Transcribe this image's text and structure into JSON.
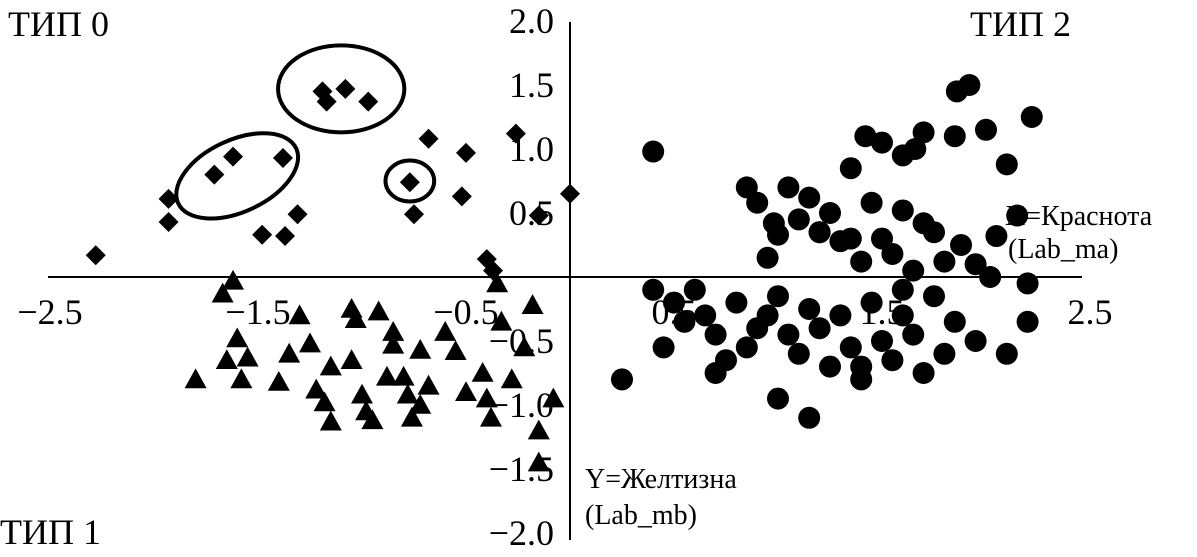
{
  "chart_data": {
    "type": "scatter",
    "title": "",
    "xlim": [
      -2.5,
      2.5
    ],
    "ylim": [
      -2.0,
      2.0
    ],
    "grid": false,
    "x_ticks": [
      {
        "value": -2.5,
        "label": "−2.5"
      },
      {
        "value": -1.5,
        "label": "−1.5"
      },
      {
        "value": -0.5,
        "label": "−0.5"
      },
      {
        "value": 0.5,
        "label": "0.5"
      },
      {
        "value": 1.5,
        "label": "1.5"
      },
      {
        "value": 2.5,
        "label": "2.5"
      }
    ],
    "y_ticks": [
      {
        "value": 2.0,
        "label": "2.0"
      },
      {
        "value": 1.5,
        "label": "1.5"
      },
      {
        "value": 1.0,
        "label": "1.0"
      },
      {
        "value": 0.5,
        "label": "0.5"
      },
      {
        "value": -0.5,
        "label": "−0.5"
      },
      {
        "value": -1.0,
        "label": "−1.0"
      },
      {
        "value": -1.5,
        "label": "−1.5"
      },
      {
        "value": -2.0,
        "label": "−2.0"
      }
    ],
    "xlabel": [
      "X=Краснота",
      "(Lab_ma)"
    ],
    "ylabel": [
      "Y=Желтизна",
      "(Lab_mb)"
    ],
    "corner_labels": {
      "top_left": "ТИП 0",
      "top_right": "ТИП 2",
      "bottom_left": "ТИП 1"
    },
    "series": [
      {
        "marker": "diamond",
        "points": [
          [
            -2.28,
            0.17
          ],
          [
            -1.93,
            0.61
          ],
          [
            -1.93,
            0.43
          ],
          [
            -1.71,
            0.8
          ],
          [
            -1.62,
            0.94
          ],
          [
            -1.48,
            0.33
          ],
          [
            -1.38,
            0.93
          ],
          [
            -1.37,
            0.32
          ],
          [
            -1.31,
            0.49
          ],
          [
            -1.19,
            1.45
          ],
          [
            -1.17,
            1.37
          ],
          [
            -1.08,
            1.47
          ],
          [
            -0.97,
            1.37
          ],
          [
            -0.77,
            0.74
          ],
          [
            -0.75,
            0.49
          ],
          [
            -0.68,
            1.08
          ],
          [
            -0.5,
            0.97
          ],
          [
            -0.52,
            0.63
          ],
          [
            -0.4,
            0.14
          ],
          [
            -0.37,
            0.05
          ],
          [
            -0.26,
            1.12
          ],
          [
            -0.15,
            0.48
          ],
          [
            0.0,
            0.65
          ]
        ]
      },
      {
        "marker": "triangle",
        "points": [
          [
            -1.62,
            -0.03
          ],
          [
            -1.67,
            -0.13
          ],
          [
            -1.6,
            -0.48
          ],
          [
            -1.65,
            -0.65
          ],
          [
            -1.55,
            -0.63
          ],
          [
            -1.58,
            -0.8
          ],
          [
            -1.8,
            -0.8
          ],
          [
            -1.3,
            -0.3
          ],
          [
            -1.35,
            -0.6
          ],
          [
            -1.4,
            -0.82
          ],
          [
            -1.25,
            -0.52
          ],
          [
            -1.15,
            -0.7
          ],
          [
            -1.22,
            -0.88
          ],
          [
            -1.18,
            -0.98
          ],
          [
            -1.15,
            -1.13
          ],
          [
            -1.05,
            -0.25
          ],
          [
            -1.03,
            -0.33
          ],
          [
            -1.05,
            -0.65
          ],
          [
            -1.0,
            -0.92
          ],
          [
            -0.98,
            -1.05
          ],
          [
            -0.95,
            -1.12
          ],
          [
            -0.92,
            -0.27
          ],
          [
            -0.85,
            -0.43
          ],
          [
            -0.85,
            -0.53
          ],
          [
            -0.8,
            -0.78
          ],
          [
            -0.78,
            -0.92
          ],
          [
            -0.76,
            -1.1
          ],
          [
            -0.72,
            -0.57
          ],
          [
            -0.68,
            -0.85
          ],
          [
            -0.6,
            -0.43
          ],
          [
            -0.55,
            -0.58
          ],
          [
            -0.5,
            -0.9
          ],
          [
            -0.42,
            -0.75
          ],
          [
            -0.4,
            -0.95
          ],
          [
            -0.38,
            -1.1
          ],
          [
            -0.35,
            -0.05
          ],
          [
            -0.33,
            -0.35
          ],
          [
            -0.28,
            -0.8
          ],
          [
            -0.22,
            -0.55
          ],
          [
            -0.18,
            -0.22
          ],
          [
            -0.15,
            -1.2
          ],
          [
            -0.15,
            -1.45
          ],
          [
            -0.08,
            -0.95
          ],
          [
            -0.72,
            -1.0
          ],
          [
            -0.88,
            -0.78
          ]
        ]
      },
      {
        "marker": "circle",
        "points": [
          [
            0.4,
            0.98
          ],
          [
            0.85,
            0.7
          ],
          [
            0.9,
            0.58
          ],
          [
            0.98,
            0.42
          ],
          [
            1.0,
            0.33
          ],
          [
            1.05,
            0.7
          ],
          [
            1.1,
            0.45
          ],
          [
            1.15,
            0.62
          ],
          [
            1.2,
            0.35
          ],
          [
            1.25,
            0.5
          ],
          [
            1.3,
            0.28
          ],
          [
            1.35,
            0.85
          ],
          [
            1.4,
            0.12
          ],
          [
            1.45,
            0.58
          ],
          [
            1.5,
            0.3
          ],
          [
            1.55,
            0.18
          ],
          [
            1.6,
            0.52
          ],
          [
            1.65,
            0.05
          ],
          [
            1.7,
            0.42
          ],
          [
            1.75,
            0.35
          ],
          [
            1.8,
            0.12
          ],
          [
            1.88,
            0.25
          ],
          [
            1.95,
            0.1
          ],
          [
            2.02,
            0.0
          ],
          [
            2.05,
            0.32
          ],
          [
            2.15,
            0.48
          ],
          [
            2.2,
            -0.05
          ],
          [
            1.42,
            1.1
          ],
          [
            1.5,
            1.05
          ],
          [
            1.6,
            0.95
          ],
          [
            1.66,
            1.0
          ],
          [
            1.7,
            1.13
          ],
          [
            1.85,
            1.1
          ],
          [
            2.0,
            1.15
          ],
          [
            2.1,
            0.88
          ],
          [
            2.22,
            1.25
          ],
          [
            1.86,
            1.45
          ],
          [
            1.92,
            1.5
          ],
          [
            1.2,
            0.35
          ],
          [
            1.35,
            0.3
          ],
          [
            0.5,
            -0.2
          ],
          [
            0.55,
            -0.35
          ],
          [
            0.6,
            -0.1
          ],
          [
            0.65,
            -0.3
          ],
          [
            0.7,
            -0.45
          ],
          [
            0.75,
            -0.65
          ],
          [
            0.8,
            -0.2
          ],
          [
            0.85,
            -0.55
          ],
          [
            0.9,
            -0.4
          ],
          [
            0.95,
            -0.3
          ],
          [
            1.0,
            -0.15
          ],
          [
            1.05,
            -0.45
          ],
          [
            1.1,
            -0.6
          ],
          [
            1.15,
            -0.25
          ],
          [
            1.2,
            -0.4
          ],
          [
            1.25,
            -0.7
          ],
          [
            1.3,
            -0.3
          ],
          [
            1.35,
            -0.55
          ],
          [
            1.4,
            -0.8
          ],
          [
            1.45,
            -0.2
          ],
          [
            1.5,
            -0.5
          ],
          [
            1.55,
            -0.65
          ],
          [
            1.6,
            -0.3
          ],
          [
            1.65,
            -0.45
          ],
          [
            1.7,
            -0.75
          ],
          [
            1.75,
            -0.15
          ],
          [
            1.8,
            -0.6
          ],
          [
            1.85,
            -0.35
          ],
          [
            1.95,
            -0.5
          ],
          [
            2.1,
            -0.6
          ],
          [
            2.2,
            -0.35
          ],
          [
            0.25,
            -0.8
          ],
          [
            0.45,
            -0.55
          ],
          [
            0.7,
            -0.75
          ],
          [
            1.0,
            -0.95
          ],
          [
            1.15,
            -1.1
          ],
          [
            1.4,
            -0.7
          ],
          [
            1.6,
            -0.1
          ],
          [
            0.4,
            -0.1
          ],
          [
            0.95,
            0.15
          ]
        ]
      }
    ],
    "ellipses": [
      {
        "cx": -1.6,
        "cy": 0.79,
        "rx": 0.34,
        "ry": 0.33,
        "rotate": -25
      },
      {
        "cx": -1.1,
        "cy": 1.47,
        "rx": 0.33,
        "ry": 0.4,
        "rotate": 0
      },
      {
        "cx": -0.77,
        "cy": 0.75,
        "rx": 0.13,
        "ry": 0.16,
        "rotate": 0
      }
    ]
  }
}
